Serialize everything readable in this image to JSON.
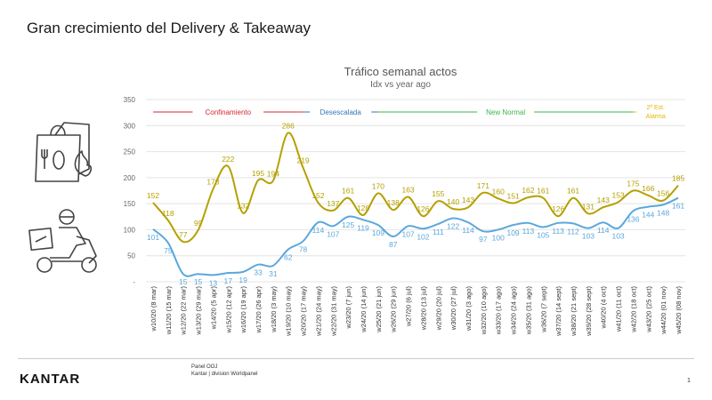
{
  "slide": {
    "title": "Gran crecimiento del Delivery & Takeaway",
    "footer_source": "Panel OOJ",
    "footer_division": "Kantar | division Worldpanel",
    "page_number": "1",
    "logo_text": "KANTAR"
  },
  "colors": {
    "series_total": "#b5a000",
    "series_base": "#5aa8dc",
    "confinamiento": "#d9262b",
    "desescalada": "#2e75b6",
    "new_normal": "#3cb54a",
    "estado_alarma": "#e8b400",
    "grid": "#e4e4e4"
  },
  "icons": [
    "takeaway-bag-icon",
    "delivery-scooter-icon"
  ],
  "chart_data": {
    "type": "line",
    "title": "Tráfico semanal actos",
    "subtitle": "Idx vs year ago",
    "ylim": [
      0,
      350
    ],
    "yticks": [
      "-",
      "50",
      "100",
      "150",
      "200",
      "250",
      "300",
      "350"
    ],
    "categories": [
      "w10/20 (8 mar)",
      "w11/20 (15 mar)",
      "w12/20 (22 mar)",
      "w13/20 (29 mar)",
      "w14/20 (5 apr)",
      "w15/20 (12 apr)",
      "w16/20 (19 apr)",
      "w17/20 (26 apr)",
      "w18/20 (3 may)",
      "w19/20 (10 may)",
      "w20/20 (17 may)",
      "w21/20 (24 may)",
      "w22/20 (31 may)",
      "w23/20 (7 jun)",
      "w24/20 (14 jun)",
      "w25/20 (21 jun)",
      "w26/20 (29 jun)",
      "w27/20 (6 jul)",
      "w28/20 (13 jul)",
      "w29/20 (20 jul)",
      "w30/20 (27 jul)",
      "w31/20 (3 ago)",
      "w32/20 (10 ago)",
      "w33/20 (17 ago)",
      "w34/20 (24 ago)",
      "w35/20 (31 ago)",
      "w36/20 (7 sept)",
      "w37/20 (14 sept)",
      "w38/20 (21 sept)",
      "w39/20 (28 sept)",
      "w40/20 (4 oct)",
      "w41/20 (11 oct)",
      "w42/20 (18 oct)",
      "w43/20 (25 oct)",
      "w44/20 (01 nov)",
      "w45/20 (08 nov)"
    ],
    "series": [
      {
        "values": [
          152,
          118,
          77,
          99,
          178,
          222,
          132,
          195,
          194,
          286,
          219,
          152,
          137,
          161,
          128,
          170,
          138,
          163,
          126,
          155,
          140,
          143,
          171,
          160,
          151,
          162,
          161,
          126,
          161,
          131,
          143,
          153,
          175,
          166,
          156,
          185
        ]
      },
      {
        "values": [
          101,
          75,
          15,
          15,
          13,
          17,
          19,
          33,
          31,
          62,
          78,
          114,
          107,
          125,
          119,
          109,
          87,
          107,
          102,
          111,
          122,
          114,
          97,
          100,
          109,
          113,
          105,
          113,
          112,
          103,
          114,
          103,
          136,
          144,
          148,
          161
        ]
      }
    ],
    "periods": [
      {
        "label": "Confinamiento",
        "from": 0,
        "to": 10
      },
      {
        "label": "Desescalada",
        "from": 10,
        "to": 15
      },
      {
        "label": "New Normal",
        "from": 15,
        "to": 32
      },
      {
        "label": "2ª Est. Alarma",
        "from": 32,
        "to": 35
      }
    ]
  }
}
